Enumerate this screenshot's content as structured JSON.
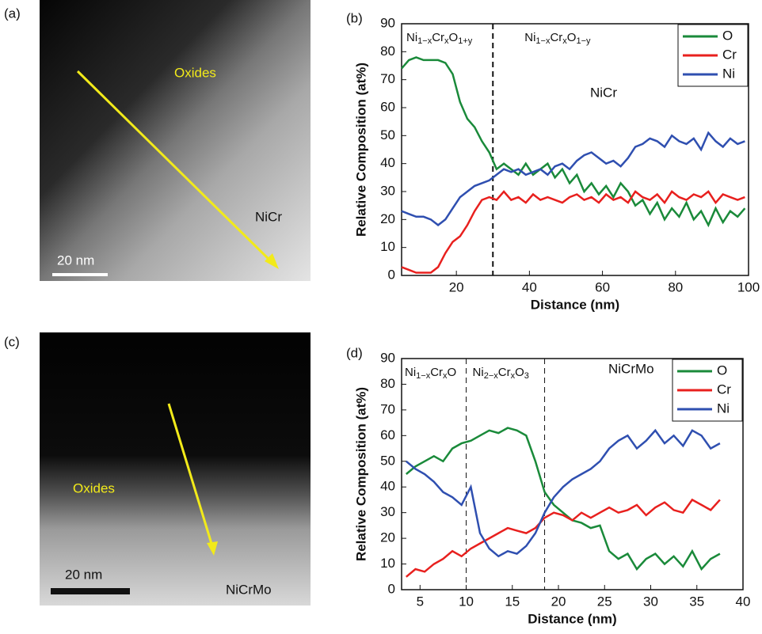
{
  "images": [
    {
      "label": "(a)",
      "annotations": [
        "Oxides",
        "NiCr"
      ],
      "scale_bar": "20 nm"
    },
    {
      "label": "(c)",
      "annotations": [
        "Oxides",
        "NiCrMo"
      ],
      "scale_bar": "20 nm"
    }
  ],
  "chart_data": [
    {
      "type": "line",
      "panel_label": "(b)",
      "annotation": "NiCr",
      "x_label": "Distance (nm)",
      "y_label": "Relative Composition (at%)",
      "xlim": [
        5,
        100
      ],
      "xticks": [
        20,
        40,
        60,
        80,
        100
      ],
      "ylim": [
        0,
        90
      ],
      "yticks": [
        0,
        10,
        20,
        30,
        40,
        50,
        60,
        70,
        80,
        90
      ],
      "legend": "top-right",
      "vlines": [
        30
      ],
      "regions": [
        {
          "parts": [
            "Ni",
            "1−x",
            "Cr",
            "x",
            "O",
            "1+y"
          ]
        },
        {
          "parts": [
            "Ni",
            "1−x",
            "Cr",
            "x",
            "O",
            "1−y"
          ]
        }
      ],
      "x": [
        5,
        7,
        9,
        11,
        13,
        15,
        17,
        19,
        21,
        23,
        25,
        27,
        29,
        31,
        33,
        35,
        37,
        39,
        41,
        43,
        45,
        47,
        49,
        51,
        53,
        55,
        57,
        59,
        61,
        63,
        65,
        67,
        69,
        71,
        73,
        75,
        77,
        79,
        81,
        83,
        85,
        87,
        89,
        91,
        93,
        95,
        97,
        99
      ],
      "series": [
        {
          "name": "O",
          "color": "#1a8a3a",
          "values": [
            74,
            77,
            78,
            77,
            77,
            77,
            76,
            72,
            62,
            56,
            53,
            48,
            44,
            38,
            40,
            38,
            36,
            40,
            36,
            38,
            40,
            35,
            38,
            33,
            36,
            30,
            33,
            29,
            32,
            28,
            33,
            30,
            25,
            27,
            22,
            26,
            20,
            24,
            21,
            26,
            20,
            23,
            18,
            24,
            19,
            23,
            21,
            24
          ]
        },
        {
          "name": "Cr",
          "color": "#e8201e",
          "values": [
            3,
            2,
            1,
            1,
            1,
            3,
            8,
            12,
            14,
            18,
            23,
            27,
            28,
            27,
            30,
            27,
            28,
            26,
            29,
            27,
            28,
            27,
            26,
            28,
            29,
            27,
            28,
            26,
            29,
            27,
            28,
            26,
            30,
            28,
            27,
            29,
            26,
            30,
            28,
            27,
            29,
            28,
            30,
            26,
            29,
            28,
            27,
            28
          ]
        },
        {
          "name": "Ni",
          "color": "#2f4fb0",
          "values": [
            23,
            22,
            21,
            21,
            20,
            18,
            20,
            24,
            28,
            30,
            32,
            33,
            34,
            36,
            38,
            37,
            38,
            36,
            37,
            38,
            36,
            39,
            40,
            38,
            41,
            43,
            44,
            42,
            40,
            41,
            39,
            42,
            46,
            47,
            49,
            48,
            46,
            50,
            48,
            47,
            49,
            45,
            51,
            48,
            46,
            49,
            47,
            48
          ]
        }
      ]
    },
    {
      "type": "line",
      "panel_label": "(d)",
      "annotation": "NiCrMo",
      "x_label": "Distance (nm)",
      "y_label": "Relative Composition (at%)",
      "xlim": [
        3,
        40
      ],
      "xticks": [
        5,
        10,
        15,
        20,
        25,
        30,
        35,
        40
      ],
      "ylim": [
        0,
        90
      ],
      "yticks": [
        0,
        10,
        20,
        30,
        40,
        50,
        60,
        70,
        80,
        90
      ],
      "legend": "top-right",
      "vlines": [
        10,
        18.5
      ],
      "regions": [
        {
          "parts": [
            "Ni",
            "1−x",
            "Cr",
            "x",
            "O"
          ]
        },
        {
          "parts": [
            "Ni",
            "2−x",
            "Cr",
            "x",
            "O",
            "3"
          ]
        }
      ],
      "x": [
        3.5,
        4.5,
        5.5,
        6.5,
        7.5,
        8.5,
        9.5,
        10.5,
        11.5,
        12.5,
        13.5,
        14.5,
        15.5,
        16.5,
        17.5,
        18.5,
        19.5,
        20.5,
        21.5,
        22.5,
        23.5,
        24.5,
        25.5,
        26.5,
        27.5,
        28.5,
        29.5,
        30.5,
        31.5,
        32.5,
        33.5,
        34.5,
        35.5,
        36.5,
        37.5
      ],
      "series": [
        {
          "name": "O",
          "color": "#1a8a3a",
          "values": [
            45,
            48,
            50,
            52,
            50,
            55,
            57,
            58,
            60,
            62,
            61,
            63,
            62,
            60,
            50,
            38,
            33,
            30,
            27,
            26,
            24,
            25,
            15,
            12,
            14,
            8,
            12,
            14,
            10,
            13,
            9,
            15,
            8,
            12,
            14
          ]
        },
        {
          "name": "Cr",
          "color": "#e8201e",
          "values": [
            5,
            8,
            7,
            10,
            12,
            15,
            13,
            16,
            18,
            20,
            22,
            24,
            23,
            22,
            24,
            28,
            30,
            29,
            27,
            30,
            28,
            30,
            32,
            30,
            31,
            33,
            29,
            32,
            34,
            31,
            30,
            35,
            33,
            31,
            35
          ]
        },
        {
          "name": "Ni",
          "color": "#2f4fb0",
          "values": [
            50,
            47,
            45,
            42,
            38,
            36,
            33,
            40,
            22,
            16,
            13,
            15,
            14,
            17,
            22,
            30,
            36,
            40,
            43,
            45,
            47,
            50,
            55,
            58,
            60,
            55,
            58,
            62,
            57,
            60,
            56,
            62,
            60,
            55,
            57
          ]
        }
      ]
    }
  ]
}
